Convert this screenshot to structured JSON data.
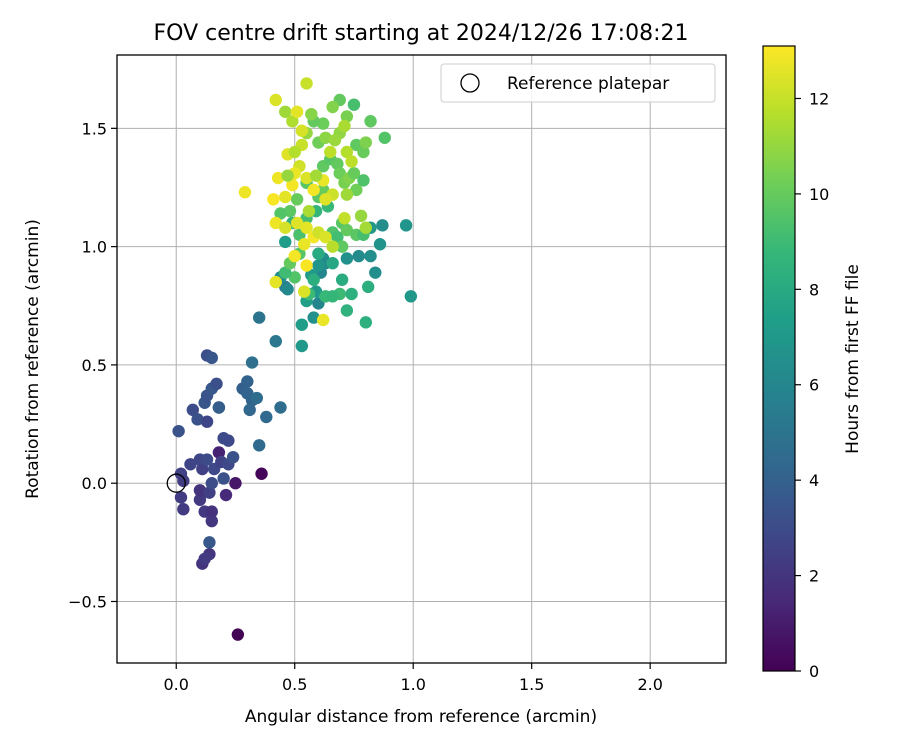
{
  "chart_data": {
    "type": "scatter",
    "title": "FOV centre drift starting at 2024/12/26 17:08:21",
    "xlabel": "Angular distance from reference (arcmin)",
    "ylabel": "Rotation from reference (arcmin)",
    "xlim": [
      -0.25,
      2.32
    ],
    "ylim": [
      -0.76,
      1.81
    ],
    "xticks": [
      0.0,
      0.5,
      1.0,
      1.5,
      2.0
    ],
    "xtick_labels": [
      "0.0",
      "0.5",
      "1.0",
      "1.5",
      "2.0"
    ],
    "yticks": [
      -0.5,
      0.0,
      0.5,
      1.0,
      1.5
    ],
    "ytick_labels": [
      "−0.5",
      "0.0",
      "0.5",
      "1.0",
      "1.5"
    ],
    "grid": true,
    "legend": {
      "position": "upper right",
      "entries": [
        "Reference platepar"
      ]
    },
    "reference_point": {
      "x": 0.0,
      "y": 0.0,
      "label": "Reference platepar"
    },
    "colorbar": {
      "label": "Hours from first FF file",
      "range": [
        0,
        13.1
      ],
      "ticks": [
        0,
        2,
        4,
        6,
        8,
        10,
        12
      ],
      "tick_labels": [
        "0",
        "2",
        "4",
        "6",
        "8",
        "10",
        "12"
      ],
      "colormap": [
        "#440154",
        "#482878",
        "#3e4989",
        "#31688e",
        "#26828e",
        "#1f9e89",
        "#35b779",
        "#6ece58",
        "#b5de2b",
        "#fde725"
      ]
    },
    "colorbar_scale_label": "Hours",
    "points_fields": [
      "x",
      "y",
      "hours"
    ],
    "points": [
      [
        0.26,
        -0.64,
        0.1
      ],
      [
        0.36,
        0.04,
        0.2
      ],
      [
        0.25,
        0.0,
        0.8
      ],
      [
        0.18,
        0.13,
        1.2
      ],
      [
        0.21,
        -0.05,
        1.6
      ],
      [
        0.11,
        -0.34,
        2.0
      ],
      [
        0.14,
        -0.3,
        2.1
      ],
      [
        0.12,
        -0.32,
        2.3
      ],
      [
        0.15,
        -0.16,
        2.1
      ],
      [
        0.12,
        -0.12,
        2.2
      ],
      [
        0.15,
        -0.12,
        1.9
      ],
      [
        0.03,
        -0.11,
        2.3
      ],
      [
        0.02,
        -0.06,
        2.4
      ],
      [
        0.1,
        -0.07,
        2.2
      ],
      [
        0.1,
        -0.03,
        2.0
      ],
      [
        0.14,
        -0.04,
        2.5
      ],
      [
        0.02,
        0.04,
        2.6
      ],
      [
        0.03,
        0.01,
        2.4
      ],
      [
        0.06,
        0.08,
        2.7
      ],
      [
        0.1,
        0.1,
        2.8
      ],
      [
        0.11,
        0.06,
        2.5
      ],
      [
        0.16,
        0.06,
        2.9
      ],
      [
        0.13,
        0.1,
        3.0
      ],
      [
        0.19,
        0.09,
        2.6
      ],
      [
        0.22,
        0.08,
        2.9
      ],
      [
        0.24,
        0.11,
        3.3
      ],
      [
        0.2,
        0.19,
        3.0
      ],
      [
        0.22,
        0.18,
        2.9
      ],
      [
        0.2,
        0.02,
        3.3
      ],
      [
        0.15,
        0.0,
        3.1
      ],
      [
        0.14,
        -0.25,
        3.6
      ],
      [
        0.01,
        0.22,
        3.4
      ],
      [
        0.07,
        0.31,
        3.1
      ],
      [
        0.09,
        0.27,
        3.3
      ],
      [
        0.13,
        0.26,
        2.8
      ],
      [
        0.12,
        0.34,
        3.5
      ],
      [
        0.13,
        0.37,
        3.4
      ],
      [
        0.15,
        0.4,
        3.6
      ],
      [
        0.17,
        0.42,
        3.2
      ],
      [
        0.18,
        0.32,
        3.7
      ],
      [
        0.13,
        0.54,
        3.2
      ],
      [
        0.15,
        0.53,
        3.5
      ],
      [
        0.18,
        0.32,
        3.9
      ],
      [
        0.28,
        0.4,
        4.0
      ],
      [
        0.3,
        0.38,
        4.2
      ],
      [
        0.3,
        0.43,
        4.1
      ],
      [
        0.32,
        0.35,
        4.2
      ],
      [
        0.34,
        0.36,
        4.6
      ],
      [
        0.31,
        0.31,
        4.3
      ],
      [
        0.38,
        0.28,
        4.5
      ],
      [
        0.44,
        0.32,
        4.6
      ],
      [
        0.35,
        0.16,
        4.5
      ],
      [
        0.32,
        0.51,
        4.8
      ],
      [
        0.35,
        0.7,
        5.0
      ],
      [
        0.42,
        0.6,
        5.2
      ],
      [
        0.46,
        0.83,
        5.6
      ],
      [
        0.44,
        0.87,
        6.4
      ],
      [
        0.47,
        0.82,
        6.2
      ],
      [
        0.53,
        0.58,
        7.0
      ],
      [
        0.53,
        0.67,
        7.2
      ],
      [
        0.55,
        0.77,
        7.4
      ],
      [
        0.58,
        0.7,
        6.6
      ],
      [
        0.6,
        0.76,
        6.0
      ],
      [
        0.61,
        0.89,
        6.1
      ],
      [
        0.62,
        0.95,
        6.4
      ],
      [
        0.63,
        0.93,
        6.3
      ],
      [
        0.6,
        0.92,
        6.8
      ],
      [
        0.59,
        0.81,
        7.0
      ],
      [
        0.57,
        0.88,
        7.1
      ],
      [
        0.66,
        0.93,
        7.8
      ],
      [
        0.72,
        0.95,
        6.6
      ],
      [
        0.77,
        0.96,
        6.3
      ],
      [
        0.82,
        0.96,
        6.5
      ],
      [
        0.84,
        0.89,
        6.5
      ],
      [
        0.86,
        1.01,
        6.7
      ],
      [
        0.87,
        1.09,
        6.4
      ],
      [
        0.82,
        1.08,
        6.9
      ],
      [
        0.97,
        1.09,
        6.8
      ],
      [
        0.99,
        0.79,
        6.9
      ],
      [
        0.81,
        0.83,
        8.2
      ],
      [
        0.72,
        0.73,
        8.4
      ],
      [
        0.8,
        0.68,
        8.3
      ],
      [
        0.69,
        0.8,
        8.9
      ],
      [
        0.7,
        0.86,
        8.1
      ],
      [
        0.74,
        0.8,
        8.3
      ],
      [
        0.63,
        0.79,
        8.8
      ],
      [
        0.6,
        0.97,
        8.0
      ],
      [
        0.66,
        0.79,
        8.7
      ],
      [
        0.58,
        0.86,
        8.2
      ],
      [
        0.56,
        0.8,
        8.9
      ],
      [
        0.5,
        0.87,
        9.5
      ],
      [
        0.46,
        0.89,
        9.0
      ],
      [
        0.48,
        0.93,
        9.9
      ],
      [
        0.52,
        0.97,
        9.6
      ],
      [
        0.52,
        1.05,
        9.3
      ],
      [
        0.49,
        1.1,
        8.4
      ],
      [
        0.46,
        1.02,
        7.2
      ],
      [
        0.55,
        1.12,
        9.1
      ],
      [
        0.59,
        1.15,
        8.6
      ],
      [
        0.64,
        1.17,
        8.8
      ],
      [
        0.66,
        1.06,
        9.4
      ],
      [
        0.68,
        1.04,
        9.1
      ],
      [
        0.7,
        1.1,
        9.6
      ],
      [
        0.7,
        1.0,
        9.8
      ],
      [
        0.72,
        1.07,
        9.9
      ],
      [
        0.76,
        1.05,
        9.7
      ],
      [
        0.79,
        1.05,
        9.2
      ],
      [
        0.6,
        1.21,
        9.7
      ],
      [
        0.62,
        1.24,
        10.0
      ],
      [
        0.55,
        1.27,
        9.6
      ],
      [
        0.51,
        1.2,
        10.0
      ],
      [
        0.48,
        1.15,
        9.7
      ],
      [
        0.44,
        1.14,
        9.5
      ],
      [
        0.62,
        1.34,
        9.8
      ],
      [
        0.6,
        1.44,
        10.2
      ],
      [
        0.65,
        1.37,
        9.6
      ],
      [
        0.68,
        1.35,
        9.9
      ],
      [
        0.69,
        1.31,
        10.1
      ],
      [
        0.71,
        1.27,
        10.4
      ],
      [
        0.73,
        1.29,
        10.6
      ],
      [
        0.75,
        1.31,
        10.0
      ],
      [
        0.76,
        1.24,
        10.2
      ],
      [
        0.79,
        1.28,
        9.4
      ],
      [
        0.76,
        1.43,
        9.8
      ],
      [
        0.79,
        1.4,
        10.0
      ],
      [
        0.8,
        1.44,
        10.5
      ],
      [
        0.82,
        1.53,
        9.8
      ],
      [
        0.88,
        1.46,
        9.5
      ],
      [
        0.75,
        1.6,
        9.2
      ],
      [
        0.69,
        1.62,
        9.9
      ],
      [
        0.72,
        1.55,
        10.4
      ],
      [
        0.66,
        1.59,
        10.6
      ],
      [
        0.62,
        1.52,
        10.1
      ],
      [
        0.58,
        1.53,
        9.9
      ],
      [
        0.57,
        1.56,
        10.7
      ],
      [
        0.46,
        1.57,
        11.2
      ],
      [
        0.49,
        1.53,
        11.5
      ],
      [
        0.55,
        1.48,
        11.0
      ],
      [
        0.63,
        1.46,
        10.8
      ],
      [
        0.69,
        1.48,
        10.9
      ],
      [
        0.72,
        1.4,
        11.6
      ],
      [
        0.74,
        1.36,
        11.8
      ],
      [
        0.72,
        1.22,
        11.2
      ],
      [
        0.78,
        1.13,
        11.0
      ],
      [
        0.8,
        1.08,
        11.3
      ],
      [
        0.55,
        1.69,
        12.0
      ],
      [
        0.51,
        1.57,
        12.6
      ],
      [
        0.53,
        1.49,
        12.3
      ],
      [
        0.42,
        1.62,
        12.4
      ],
      [
        0.47,
        1.39,
        12.5
      ],
      [
        0.52,
        1.34,
        12.2
      ],
      [
        0.43,
        1.29,
        12.8
      ],
      [
        0.46,
        1.21,
        12.6
      ],
      [
        0.49,
        1.26,
        12.9
      ],
      [
        0.5,
        1.31,
        12.7
      ],
      [
        0.55,
        1.29,
        12.4
      ],
      [
        0.58,
        1.24,
        12.9
      ],
      [
        0.62,
        1.28,
        12.7
      ],
      [
        0.66,
        1.22,
        12.1
      ],
      [
        0.63,
        1.2,
        12.5
      ],
      [
        0.42,
        1.1,
        12.8
      ],
      [
        0.46,
        1.08,
        12.3
      ],
      [
        0.51,
        1.1,
        12.5
      ],
      [
        0.55,
        1.08,
        12.6
      ],
      [
        0.58,
        1.04,
        12.9
      ],
      [
        0.6,
        1.06,
        12.2
      ],
      [
        0.63,
        1.04,
        12.4
      ],
      [
        0.54,
        1.01,
        12.7
      ],
      [
        0.5,
        0.96,
        12.9
      ],
      [
        0.55,
        0.92,
        13.0
      ],
      [
        0.41,
        1.2,
        13.0
      ],
      [
        0.29,
        1.23,
        12.8
      ],
      [
        0.42,
        0.85,
        12.6
      ],
      [
        0.54,
        0.81,
        12.4
      ],
      [
        0.62,
        0.69,
        12.7
      ],
      [
        0.56,
        1.15,
        11.4
      ],
      [
        0.66,
        1.0,
        11.7
      ],
      [
        0.71,
        1.12,
        11.9
      ],
      [
        0.53,
        1.43,
        12.0
      ],
      [
        0.59,
        1.3,
        11.3
      ],
      [
        0.47,
        1.3,
        11.0
      ],
      [
        0.5,
        1.4,
        11.6
      ],
      [
        0.67,
        1.45,
        11.1
      ],
      [
        0.71,
        1.51,
        11.4
      ],
      [
        0.65,
        1.4,
        11.8
      ]
    ]
  }
}
